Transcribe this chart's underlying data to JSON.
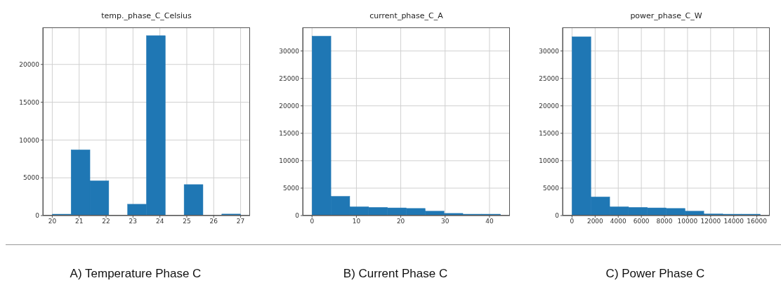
{
  "chart_data": [
    {
      "type": "histogram",
      "title": "temp._phase_C_Celsius",
      "annotations": [
        "A) Temperature Phase C"
      ],
      "color": "#1f77b4",
      "bins": [
        20,
        20.7,
        21.4,
        22.1,
        22.8,
        23.5,
        24.2,
        24.9,
        25.6,
        26.3,
        27
      ],
      "values": [
        100,
        8700,
        4600,
        0,
        1500,
        23800,
        0,
        4100,
        0,
        200
      ],
      "xlim": [
        19.65,
        27.35
      ],
      "xticks": [
        20,
        21,
        22,
        23,
        24,
        25,
        26,
        27
      ],
      "ylim": [
        0,
        24900
      ],
      "yticks": [
        0,
        5000,
        10000,
        15000,
        20000
      ],
      "grid": true
    },
    {
      "type": "histogram",
      "title": "current_phase_C_A",
      "annotations": [
        "B) Current Phase C"
      ],
      "color": "#1f77b4",
      "bins": [
        0,
        4.25,
        8.5,
        12.75,
        17,
        21.25,
        25.5,
        29.75,
        34,
        38.25,
        42.5
      ],
      "values": [
        32700,
        3500,
        1600,
        1500,
        1400,
        1300,
        800,
        400,
        100,
        100
      ],
      "xlim": [
        -2.1,
        44.6
      ],
      "xticks": [
        0,
        10,
        20,
        30,
        40
      ],
      "ylim": [
        0,
        34300
      ],
      "yticks": [
        0,
        5000,
        10000,
        15000,
        20000,
        25000,
        30000
      ],
      "grid": true
    },
    {
      "type": "histogram",
      "title": "power_phase_C_W",
      "annotations": [
        "C) Power Phase C"
      ],
      "color": "#1f77b4",
      "bins": [
        0,
        1630,
        3260,
        4890,
        6520,
        8150,
        9780,
        11410,
        13040,
        14670,
        16300
      ],
      "values": [
        32600,
        3400,
        1600,
        1500,
        1400,
        1300,
        800,
        300,
        100,
        100
      ],
      "xlim": [
        -820,
        17120
      ],
      "xticks": [
        0,
        2000,
        4000,
        6000,
        8000,
        10000,
        12000,
        14000,
        16000
      ],
      "ylim": [
        0,
        34300
      ],
      "yticks": [
        0,
        5000,
        10000,
        15000,
        20000,
        25000,
        30000
      ],
      "grid": true
    }
  ]
}
